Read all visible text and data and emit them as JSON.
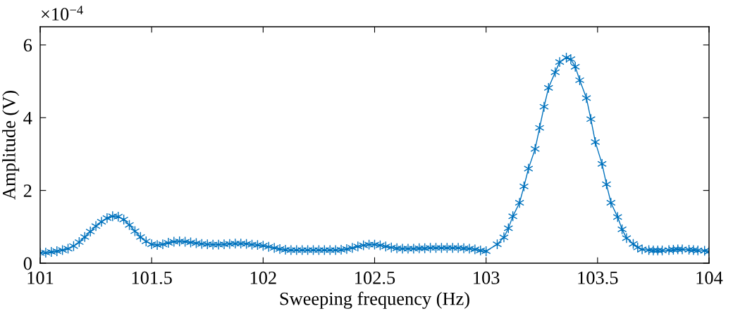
{
  "chart_data": {
    "type": "line",
    "xlabel": "Sweeping frequency (Hz)",
    "ylabel": "Amplitude (V)",
    "annotations": [
      "×10$^{−4}$"
    ],
    "xlim": [
      101,
      104
    ],
    "xticks": [
      101,
      101.5,
      102,
      102.5,
      103,
      103.5,
      104
    ],
    "ylim": [
      0,
      6.5
    ],
    "yticks": [
      0,
      2,
      4,
      6
    ],
    "grid": false,
    "legend": false,
    "marker": "cross",
    "line_style": "solid",
    "series": [
      {
        "color": "#0072bd",
        "x": [
          101.0,
          101.025,
          101.05,
          101.075,
          101.1,
          101.125,
          101.15,
          101.175,
          101.2,
          101.225,
          101.25,
          101.275,
          101.3,
          101.325,
          101.35,
          101.375,
          101.4,
          101.425,
          101.45,
          101.475,
          101.5,
          101.525,
          101.55,
          101.575,
          101.6,
          101.625,
          101.65,
          101.675,
          101.7,
          101.725,
          101.75,
          101.775,
          101.8,
          101.825,
          101.85,
          101.875,
          101.9,
          101.925,
          101.95,
          101.975,
          102.0,
          102.025,
          102.05,
          102.075,
          102.1,
          102.125,
          102.15,
          102.175,
          102.2,
          102.225,
          102.25,
          102.275,
          102.3,
          102.325,
          102.35,
          102.375,
          102.4,
          102.425,
          102.45,
          102.475,
          102.5,
          102.525,
          102.55,
          102.575,
          102.6,
          102.625,
          102.65,
          102.675,
          102.7,
          102.725,
          102.75,
          102.775,
          102.8,
          102.825,
          102.85,
          102.875,
          102.9,
          102.925,
          102.95,
          102.975,
          103.0,
          103.05,
          103.08,
          103.1,
          103.12,
          103.15,
          103.17,
          103.19,
          103.22,
          103.24,
          103.26,
          103.28,
          103.31,
          103.33,
          103.36,
          103.38,
          103.4,
          103.42,
          103.45,
          103.47,
          103.49,
          103.52,
          103.54,
          103.56,
          103.59,
          103.61,
          103.63,
          103.66,
          103.68,
          103.7,
          103.73,
          103.75,
          103.77,
          103.79,
          103.82,
          103.84,
          103.86,
          103.88,
          103.91,
          103.93,
          103.95,
          103.98,
          104.0
        ],
        "values": [
          0.28,
          0.29,
          0.31,
          0.33,
          0.36,
          0.4,
          0.47,
          0.58,
          0.72,
          0.87,
          1.02,
          1.14,
          1.24,
          1.29,
          1.28,
          1.2,
          1.05,
          0.88,
          0.72,
          0.6,
          0.52,
          0.5,
          0.52,
          0.56,
          0.59,
          0.6,
          0.59,
          0.57,
          0.55,
          0.53,
          0.52,
          0.51,
          0.51,
          0.52,
          0.53,
          0.54,
          0.54,
          0.53,
          0.51,
          0.5,
          0.48,
          0.45,
          0.42,
          0.39,
          0.37,
          0.36,
          0.36,
          0.36,
          0.36,
          0.36,
          0.36,
          0.36,
          0.36,
          0.36,
          0.37,
          0.39,
          0.42,
          0.46,
          0.49,
          0.51,
          0.51,
          0.49,
          0.46,
          0.43,
          0.41,
          0.4,
          0.4,
          0.4,
          0.41,
          0.41,
          0.42,
          0.42,
          0.42,
          0.42,
          0.42,
          0.42,
          0.41,
          0.4,
          0.38,
          0.35,
          0.33,
          0.52,
          0.71,
          0.96,
          1.29,
          1.66,
          2.11,
          2.6,
          3.14,
          3.72,
          4.3,
          4.82,
          5.25,
          5.53,
          5.65,
          5.61,
          5.4,
          5.03,
          4.54,
          3.96,
          3.33,
          2.73,
          2.17,
          1.66,
          1.27,
          0.93,
          0.69,
          0.53,
          0.43,
          0.38,
          0.36,
          0.35,
          0.35,
          0.35,
          0.36,
          0.37,
          0.38,
          0.38,
          0.37,
          0.36,
          0.35,
          0.34,
          0.32
        ]
      }
    ]
  }
}
